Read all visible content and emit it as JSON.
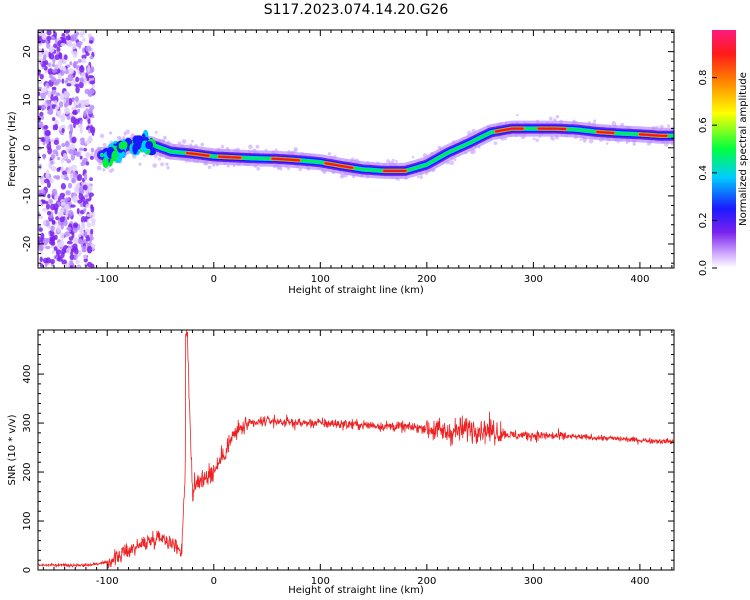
{
  "title": "S117.2023.074.14.20.G26",
  "chart_data": [
    {
      "type": "heatmap",
      "xlabel": "Height of straight line (km)",
      "ylabel": "Frequency (Hz)",
      "xlim": [
        -165,
        432
      ],
      "ylim": [
        -25,
        24.5
      ],
      "xticks": [
        -100,
        0,
        100,
        200,
        300,
        400
      ],
      "yticks": [
        -20,
        -10,
        0,
        10,
        20
      ],
      "colorbar": {
        "label": "Normalized spectral amplitude",
        "range": [
          0,
          1
        ],
        "ticks": [
          "0.0",
          "0.2",
          "0.4",
          "0.6",
          "0.8"
        ],
        "colormap": [
          "#ffffff",
          "#d8b8ff",
          "#7a22ee",
          "#1a1aff",
          "#00ccff",
          "#00ff40",
          "#ffff00",
          "#ff8800",
          "#ff1a1a",
          "#ff1a80"
        ]
      },
      "trace": {
        "x": [
          -100,
          -80,
          -60,
          -40,
          -20,
          0,
          20,
          40,
          60,
          80,
          100,
          120,
          140,
          160,
          180,
          200,
          220,
          240,
          260,
          280,
          300,
          320,
          340,
          360,
          380,
          400,
          420,
          432
        ],
        "y": [
          -1.5,
          0.5,
          0.8,
          -0.8,
          -1.2,
          -1.8,
          -2.0,
          -2.2,
          -2.3,
          -2.6,
          -3.0,
          -3.8,
          -4.5,
          -4.8,
          -4.8,
          -3.5,
          -1.0,
          1.0,
          3.2,
          4.0,
          4.0,
          4.0,
          3.8,
          3.3,
          3.0,
          2.8,
          2.5,
          2.5
        ]
      }
    },
    {
      "type": "line",
      "xlabel": "Height of straight line (km)",
      "ylabel": "SNR (10 * v/v)",
      "xlim": [
        -165,
        432
      ],
      "ylim": [
        0,
        490
      ],
      "xticks": [
        -100,
        0,
        100,
        200,
        300,
        400
      ],
      "yticks": [
        0,
        100,
        200,
        300,
        400
      ],
      "color": "#ee2222",
      "series": {
        "x": [
          -165,
          -120,
          -100,
          -80,
          -60,
          -50,
          -40,
          -30,
          -27,
          -25,
          -20,
          -10,
          0,
          10,
          20,
          30,
          50,
          80,
          100,
          150,
          200,
          220,
          240,
          260,
          280,
          300,
          340,
          380,
          400,
          432
        ],
        "y": [
          10,
          10,
          15,
          40,
          60,
          70,
          55,
          40,
          200,
          480,
          160,
          190,
          200,
          240,
          280,
          295,
          305,
          300,
          300,
          295,
          290,
          280,
          290,
          285,
          275,
          275,
          272,
          268,
          265,
          262
        ]
      }
    }
  ]
}
